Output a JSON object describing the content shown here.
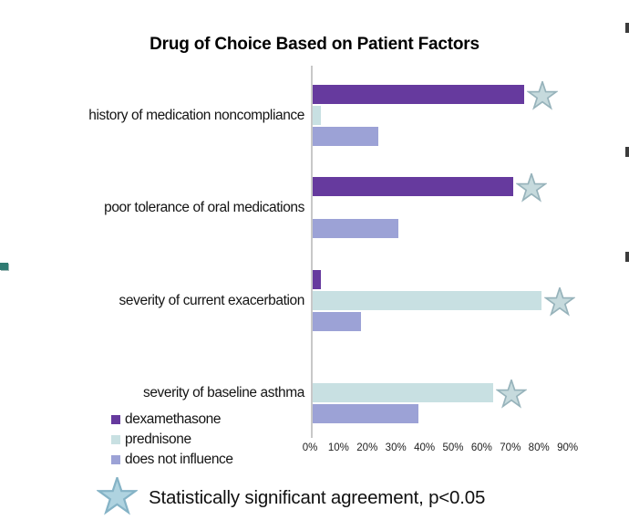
{
  "title": "Drug of Choice Based on Patient Factors",
  "chart_data": {
    "type": "bar",
    "orientation": "horizontal",
    "title": "Drug of Choice Based on Patient Factors",
    "categories": [
      "history of medication noncompliance",
      "poor tolerance of oral medications",
      "severity of current exacerbation",
      "severity of baseline asthma"
    ],
    "series": [
      {
        "name": "dexamethasone",
        "color": "#663A9E",
        "values": [
          74,
          70,
          3,
          0
        ]
      },
      {
        "name": "prednisone",
        "color": "#C8E0E2",
        "values": [
          3,
          0,
          80,
          63
        ]
      },
      {
        "name": "does not influence",
        "color": "#9CA2D6",
        "values": [
          23,
          30,
          17,
          37
        ]
      }
    ],
    "x_ticks": [
      "0%",
      "10%",
      "20%",
      "30%",
      "40%",
      "50%",
      "60%",
      "70%",
      "80%",
      "90%"
    ],
    "xlim": [
      0,
      90
    ],
    "grid": false,
    "legend_position": "bottom-left",
    "significant_groups": [
      true,
      true,
      true,
      true
    ],
    "annotation": "Statistically significant agreement, p<0.05"
  },
  "icons": {
    "star": "statistical-significance-star"
  },
  "colors": {
    "axis_line": "#C8C8C8",
    "chart_star_fill": "#C6DADD",
    "chart_star_stroke": "#97B3BB",
    "note_star_fill": "#AFD3E0",
    "note_star_stroke": "#85B3C6",
    "edge_mark": "#3C3C3C",
    "teal_mark": "#2F7B72"
  }
}
